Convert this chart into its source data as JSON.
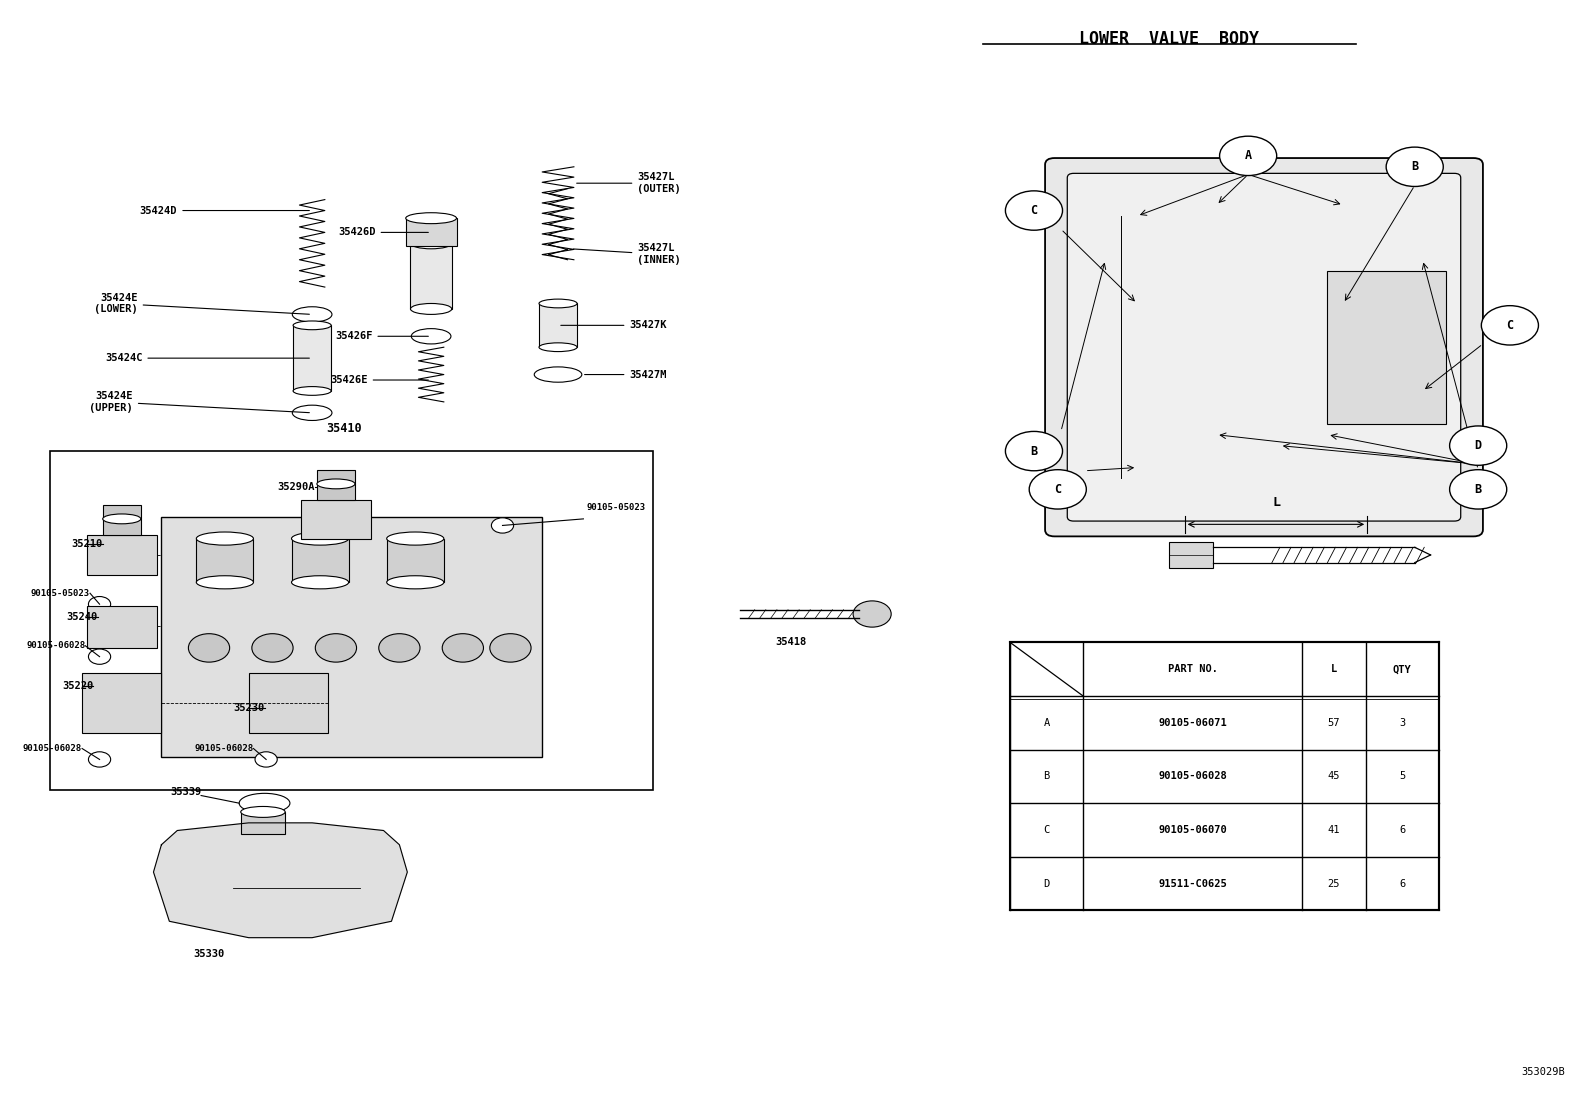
{
  "title": "LOWER  VALVE  BODY",
  "bg_color": "#ffffff",
  "line_color": "#000000",
  "diagram_id": "353029B",
  "table_headers": [
    "",
    "PART NO.",
    "L",
    "QTY"
  ],
  "table_rows": [
    [
      "A",
      "90105-06071",
      "57",
      "3"
    ],
    [
      "B",
      "90105-06028",
      "45",
      "5"
    ],
    [
      "C",
      "90105-06070",
      "41",
      "6"
    ],
    [
      "D",
      "91511-C0625",
      "25",
      "6"
    ]
  ]
}
